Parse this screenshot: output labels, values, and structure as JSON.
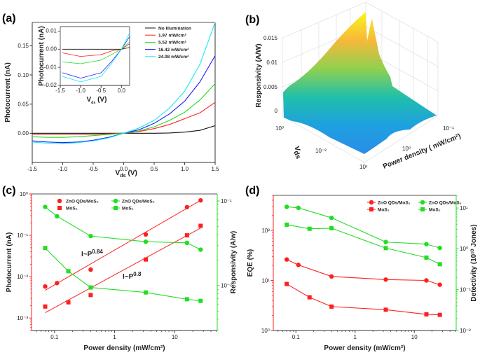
{
  "panels": {
    "a": "(a)",
    "b": "(b)",
    "c": "(c)",
    "d": "(d)"
  },
  "chart_data": [
    {
      "id": "a",
      "type": "line",
      "xlabel": "V",
      "xlabel_sub": "ds",
      "xlabel_unit": " (V)",
      "ylabel": "Photocurrent (nA)",
      "xlim": [
        -1.5,
        1.5
      ],
      "ylim": [
        -0.05,
        0.19
      ],
      "xlog": false,
      "ylog": false,
      "xticks": [
        {
          "v": -1.5,
          "label": "-1.5"
        },
        {
          "v": -1.0,
          "label": "-1.0"
        },
        {
          "v": -0.5,
          "label": "-0.5"
        },
        {
          "v": 0,
          "label": "0.0"
        },
        {
          "v": 0.5,
          "label": "0.5"
        },
        {
          "v": 1.0,
          "label": "1.0"
        },
        {
          "v": 1.5,
          "label": "1.5"
        }
      ],
      "yticks": [
        {
          "v": 0,
          "label": "0.00"
        },
        {
          "v": 0.05,
          "label": "0.05"
        },
        {
          "v": 0.1,
          "label": "0.10"
        },
        {
          "v": 0.15,
          "label": "0.15"
        }
      ],
      "axis_colors": {
        "left": "#333333",
        "right": "#333333"
      },
      "legend": "top-right",
      "x": [
        -1.5,
        -1.25,
        -1.0,
        -0.75,
        -0.5,
        -0.25,
        0,
        0.25,
        0.5,
        0.75,
        1.0,
        1.25,
        1.5
      ],
      "series": [
        {
          "name": "No Illumination",
          "color": "#111111",
          "y": [
            0,
            0,
            0,
            0,
            0,
            0,
            0,
            0,
            0,
            0.0005,
            0.002,
            0.005,
            0.013
          ]
        },
        {
          "name": "1.97 mW/cm²",
          "color": "#ff1f1f",
          "y": [
            -0.002,
            -0.002,
            -0.002,
            -0.002,
            -0.002,
            -0.001,
            0,
            0.003,
            0.008,
            0.015,
            0.025,
            0.035,
            0.053
          ]
        },
        {
          "name": "5.52 mW/cm²",
          "color": "#22dd22",
          "y": [
            -0.006,
            -0.007,
            -0.007,
            -0.006,
            -0.004,
            -0.002,
            0,
            0.004,
            0.011,
            0.022,
            0.036,
            0.057,
            0.085
          ]
        },
        {
          "name": "16.42 mW/cm²",
          "color": "#1a1aff",
          "y": [
            -0.013,
            -0.015,
            -0.016,
            -0.015,
            -0.012,
            -0.007,
            0,
            0.006,
            0.017,
            0.033,
            0.055,
            0.088,
            0.133
          ]
        },
        {
          "name": "24.08 mW/cm²",
          "color": "#12e8f0",
          "y": [
            -0.015,
            -0.017,
            -0.018,
            -0.016,
            -0.013,
            -0.008,
            0,
            0.009,
            0.022,
            0.043,
            0.072,
            0.118,
            0.19
          ]
        }
      ]
    },
    {
      "id": "a-inset",
      "type": "line",
      "xlabel": "V",
      "xlabel_sub": "ds",
      "xlabel_unit": " (V)",
      "ylabel": "Photocurrent (nA)",
      "xlim": [
        -1.5,
        0.2
      ],
      "ylim": [
        -0.02,
        0.0125
      ],
      "xlog": false,
      "ylog": false,
      "xticks": [
        {
          "v": -1.5,
          "label": "-1.5"
        },
        {
          "v": -1.0,
          "label": "-1.0"
        },
        {
          "v": -0.5,
          "label": "-0.5"
        },
        {
          "v": 0,
          "label": "0.0"
        }
      ],
      "yticks": [
        {
          "v": -0.02,
          "label": "-0.02"
        },
        {
          "v": -0.01,
          "label": "-0.01"
        },
        {
          "v": 0,
          "label": "0.00"
        },
        {
          "v": 0.01,
          "label": "0.01"
        }
      ],
      "axis_colors": {
        "left": "#666666",
        "right": "#666666"
      },
      "x": [
        -1.45,
        -1.0,
        -0.5,
        -0.25,
        0,
        0.2
      ],
      "series": [
        {
          "color": "#111111",
          "y": [
            0,
            0,
            0,
            0,
            0,
            0.001
          ]
        },
        {
          "color": "#ff1f1f",
          "y": [
            -0.002,
            -0.004,
            -0.003,
            -0.001,
            0,
            0.003
          ]
        },
        {
          "color": "#22dd22",
          "y": [
            -0.007,
            -0.008,
            -0.006,
            -0.003,
            0,
            0.004
          ]
        },
        {
          "color": "#1a1aff",
          "y": [
            -0.013,
            -0.016,
            -0.013,
            -0.007,
            0,
            0.007
          ]
        },
        {
          "color": "#12e8f0",
          "y": [
            -0.015,
            -0.018,
            -0.015,
            -0.008,
            0,
            0.009
          ]
        }
      ]
    },
    {
      "id": "b",
      "type": "surface",
      "zlabel": "Responsivity (A/W)",
      "ylabel": "V",
      "ylabel_sub": "ds",
      "xlabel": "Power density ( mW/cm²)",
      "zticks": [
        "0.015",
        "0.01",
        "0.005",
        "0"
      ],
      "zlim": [
        0,
        0.018
      ],
      "vds_ticks": [
        "10⁰",
        "10⁻²"
      ],
      "power_ticks": [
        "10¹",
        "10⁰",
        "10⁻¹"
      ],
      "colormap": [
        "#f8f51c",
        "#f7b83a",
        "#8fd14f",
        "#20bfaa",
        "#1ea0e0",
        "#2a8de8"
      ]
    },
    {
      "id": "c",
      "type": "scatter",
      "xlabel": "Power density (mW/cm²)",
      "ylabel": "Photocurrent (nA)",
      "y2label": "Responsivity (A/w)",
      "xlim": [
        0.0415,
        51
      ],
      "ylim": [
        0.0005,
        1
      ],
      "y2lim": [
        0.00295,
        0.121
      ],
      "xlog": true,
      "ylog": true,
      "y2log": true,
      "xticks": [
        {
          "v": 0.1,
          "label": "0.1"
        },
        {
          "v": 1,
          "label": "1"
        },
        {
          "v": 10,
          "label": "10"
        }
      ],
      "yticks": [
        {
          "v": 0.001,
          "label": "10⁻³"
        },
        {
          "v": 0.01,
          "label": "10⁻²"
        },
        {
          "v": 0.1,
          "label": "10⁻¹"
        },
        {
          "v": 1,
          "label": "10⁰"
        }
      ],
      "y2ticks": [
        {
          "v": 0.01,
          "label": "10⁻²"
        },
        {
          "v": 0.1,
          "label": "10⁻¹"
        }
      ],
      "axis_colors": {
        "left": "#ff2020",
        "right": "#22dd22"
      },
      "legend": "top-left",
      "series": [
        {
          "name": "ZnO QDs/MoS₂",
          "axis": "left",
          "color": "#ff1f1f",
          "marker": "circle",
          "line": false,
          "x": [
            0.07,
            0.11,
            0.4,
            3.3,
            16,
            27
          ],
          "y": [
            0.0058,
            0.007,
            0.0148,
            0.105,
            0.48,
            0.7
          ]
        },
        {
          "name": "MoS₂",
          "axis": "left",
          "color": "#ff1f1f",
          "marker": "square",
          "line": false,
          "x": [
            0.07,
            0.17,
            0.4,
            3.3,
            16,
            27
          ],
          "y": [
            0.0019,
            0.0024,
            0.0036,
            0.026,
            0.1,
            0.17
          ]
        },
        {
          "name": "ZnO QDs/MoS₂",
          "axis": "right",
          "color": "#22dd22",
          "marker": "circle",
          "line": true,
          "x": [
            0.07,
            0.11,
            0.4,
            3.3,
            16,
            27
          ],
          "y": [
            0.085,
            0.066,
            0.0385,
            0.033,
            0.032,
            0.0266
          ]
        },
        {
          "name": "MoS₂",
          "axis": "right",
          "color": "#22dd22",
          "marker": "square",
          "line": true,
          "x": [
            0.07,
            0.17,
            0.4,
            3.3,
            16,
            27
          ],
          "y": [
            0.0278,
            0.0148,
            0.0095,
            0.0083,
            0.0069,
            0.0066
          ]
        }
      ],
      "fits": [
        {
          "color": "#ff1f1f",
          "x": [
            0.07,
            27
          ],
          "y": [
            0.0047,
            0.7
          ]
        },
        {
          "color": "#ff1f1f",
          "x": [
            0.07,
            27
          ],
          "y": [
            0.00135,
            0.15
          ]
        }
      ],
      "annotations": [
        {
          "text": "I~P",
          "sup": "0.84",
          "color": "#ff1f1f"
        },
        {
          "text": "I~P",
          "sup": "0.8",
          "color": "#ff1f1f"
        }
      ]
    },
    {
      "id": "d",
      "type": "line",
      "xlabel": "Power density (mW/cm²)",
      "ylabel": "EQE (%)",
      "y2label": "Detectivity (10¹⁰ Jones)",
      "xlim": [
        0.0415,
        51
      ],
      "ylim": [
        1,
        500
      ],
      "y2lim": [
        0.01,
        20.4
      ],
      "xlog": true,
      "ylog": true,
      "y2log": true,
      "xticks": [
        {
          "v": 0.1,
          "label": "0.1"
        },
        {
          "v": 1,
          "label": "1"
        },
        {
          "v": 10,
          "label": "10"
        }
      ],
      "yticks": [
        {
          "v": 1,
          "label": "10⁰"
        },
        {
          "v": 10,
          "label": "10¹"
        },
        {
          "v": 100,
          "label": "10²"
        }
      ],
      "y2ticks": [
        {
          "v": 0.01,
          "label": "10⁻²"
        },
        {
          "v": 0.1,
          "label": "10⁻¹"
        },
        {
          "v": 1,
          "label": "10⁰"
        },
        {
          "v": 10,
          "label": "10¹"
        }
      ],
      "axis_colors": {
        "left": "#ff2020",
        "right": "#22dd22"
      },
      "legend": "top-right",
      "series": [
        {
          "name": "ZnO QDs/MoS₂",
          "axis": "left",
          "color": "#ff1f1f",
          "marker": "circle",
          "line": true,
          "x": [
            0.07,
            0.11,
            0.4,
            3.3,
            16,
            27
          ],
          "y": [
            26.2,
            20.4,
            12,
            10.4,
            10,
            8.2
          ]
        },
        {
          "name": "MoS₂",
          "axis": "left",
          "color": "#ff1f1f",
          "marker": "square",
          "line": true,
          "x": [
            0.07,
            0.17,
            0.4,
            3.3,
            16,
            27
          ],
          "y": [
            8.5,
            4.6,
            3.0,
            2.6,
            2.1,
            2.05
          ]
        },
        {
          "name": "ZnO QDs/MoS₂",
          "axis": "right",
          "color": "#22dd22",
          "marker": "circle",
          "line": true,
          "x": [
            0.07,
            0.11,
            0.4,
            3.3,
            16,
            27
          ],
          "y": [
            10.7,
            10.1,
            5.75,
            1.47,
            1.3,
            1.05
          ]
        },
        {
          "name": "MoS₂",
          "axis": "right",
          "color": "#22dd22",
          "marker": "square",
          "line": true,
          "x": [
            0.07,
            0.17,
            0.4,
            3.3,
            16,
            27
          ],
          "y": [
            3.9,
            3.1,
            3.2,
            1.04,
            0.61,
            0.42
          ]
        }
      ]
    }
  ]
}
